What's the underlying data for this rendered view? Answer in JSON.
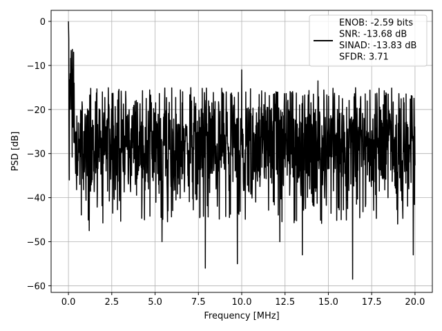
{
  "chart_data": {
    "type": "line",
    "title": "",
    "xlabel": "Frequency [MHz]",
    "ylabel": "PSD [dB]",
    "xlim": [
      -1.0,
      21.0
    ],
    "ylim": [
      -61.5,
      2.5
    ],
    "xticks": [
      0.0,
      2.5,
      5.0,
      7.5,
      10.0,
      12.5,
      15.0,
      17.5,
      20.0
    ],
    "xtick_labels": [
      "0.0",
      "2.5",
      "5.0",
      "7.5",
      "10.0",
      "12.5",
      "15.0",
      "17.5",
      "20.0"
    ],
    "yticks": [
      0,
      -10,
      -20,
      -30,
      -40,
      -50,
      -60
    ],
    "ytick_labels": [
      "0",
      "−10",
      "−20",
      "−30",
      "−40",
      "−50",
      "−60"
    ],
    "grid": true,
    "legend": {
      "placement": "upper-right",
      "entries": [
        "ENOB: -2.59 bits",
        "SNR: -13.68 dB",
        "SINAD: -13.83 dB",
        "SFDR: 3.71"
      ]
    },
    "series": [
      {
        "color": "#000000",
        "x_start": 0.0,
        "x_end": 20.0,
        "description_points": [
          {
            "x": 0.0,
            "y": 0.0
          },
          {
            "x": 0.02,
            "y": -4.0
          },
          {
            "x": 0.05,
            "y": -36.0
          },
          {
            "x": 0.3,
            "y": -7.0
          },
          {
            "x": 1.2,
            "y": -47.5
          },
          {
            "x": 5.4,
            "y": -50.0
          },
          {
            "x": 7.9,
            "y": -56.0
          },
          {
            "x": 10.0,
            "y": -11.0
          },
          {
            "x": 9.75,
            "y": -55.0
          },
          {
            "x": 12.2,
            "y": -50.0
          },
          {
            "x": 13.5,
            "y": -53.0
          },
          {
            "x": 14.4,
            "y": -13.5
          },
          {
            "x": 16.4,
            "y": -58.5
          },
          {
            "x": 19.9,
            "y": -53.0
          }
        ],
        "noise_band": {
          "upper": -17.0,
          "lower": -40.0,
          "mean": -28.0
        }
      }
    ]
  }
}
